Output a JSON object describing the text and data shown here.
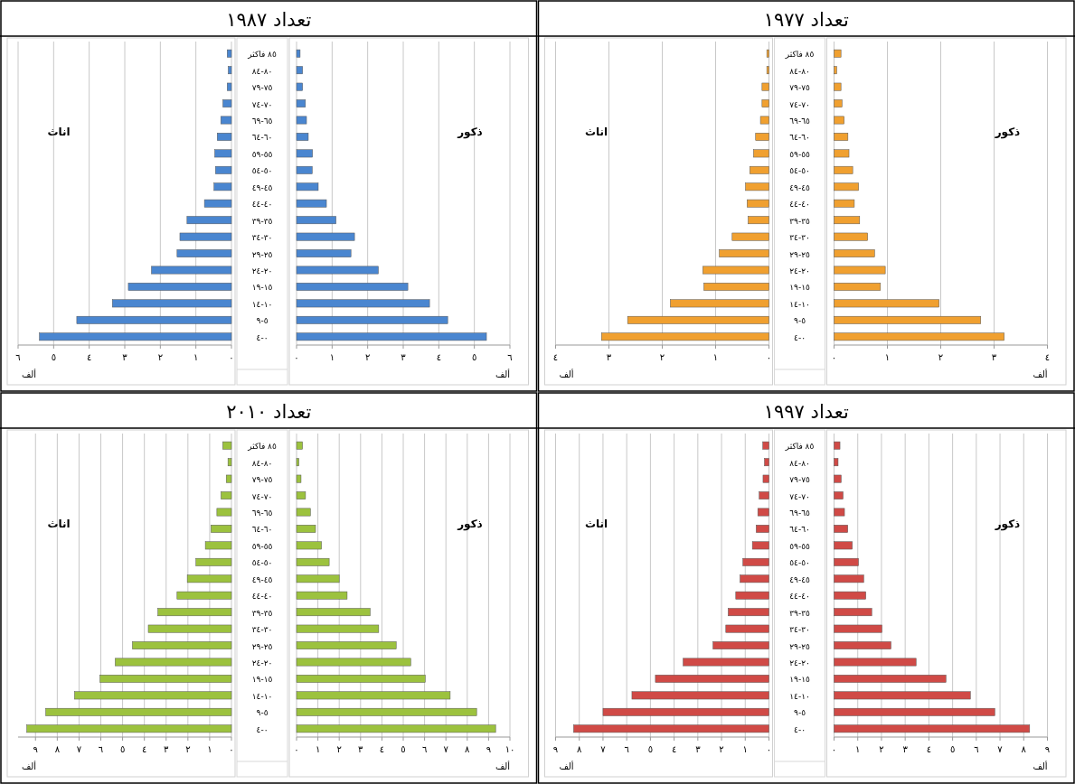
{
  "chart_data": [
    {
      "type": "bar",
      "orientation": "horizontal",
      "title": "تعداد ١٩٧٧",
      "xlabel": "ألف",
      "grid": "x",
      "categories": [
        "٨٥ فاكثر",
        "٨٠-٨٤",
        "٧٥-٧٩",
        "٧٠-٧٤",
        "٦٥-٦٩",
        "٦٠-٦٤",
        "٥٥-٥٩",
        "٥٠-٥٤",
        "٤٥-٤٩",
        "٤٠-٤٤",
        "٣٥-٣٩",
        "٣٠-٣٤",
        "٢٥-٢٩",
        "٢٠-٢٤",
        "١٥-١٩",
        "١٠-١٤",
        "٥-٩",
        "٠-٤"
      ],
      "xlim": [
        0,
        4
      ],
      "xticks": [
        {
          "value": 0,
          "label": "٠"
        },
        {
          "value": 1,
          "label": "١"
        },
        {
          "value": 2,
          "label": "٢"
        },
        {
          "value": 3,
          "label": "٣"
        },
        {
          "value": 4,
          "label": "٤"
        }
      ],
      "series": [
        {
          "name": "ذكور",
          "color": "#f0a030",
          "values": [
            0.13,
            0.05,
            0.13,
            0.15,
            0.19,
            0.26,
            0.28,
            0.35,
            0.46,
            0.38,
            0.48,
            0.63,
            0.76,
            0.96,
            0.87,
            1.97,
            2.75,
            3.19
          ]
        }
      ]
    },
    {
      "type": "bar",
      "orientation": "horizontal",
      "xlabel": "ألف",
      "grid": "x",
      "categories": [
        null,
        null,
        null,
        null,
        null,
        null,
        null,
        null,
        null,
        null,
        null,
        null,
        null,
        null,
        null,
        null,
        null,
        null
      ],
      "xlim": [
        4,
        0
      ],
      "xticks": [
        {
          "value": 4,
          "label": "٤"
        },
        {
          "value": 3,
          "label": "٣"
        },
        {
          "value": 2,
          "label": "٢"
        },
        {
          "value": 1,
          "label": "١"
        },
        {
          "value": 0,
          "label": "٠"
        }
      ],
      "series": [
        {
          "name": "اناث",
          "color": "#f0a030",
          "values": [
            0.04,
            0.04,
            0.13,
            0.13,
            0.16,
            0.25,
            0.29,
            0.36,
            0.44,
            0.41,
            0.39,
            0.69,
            0.93,
            1.24,
            1.22,
            1.85,
            2.65,
            3.14
          ]
        }
      ]
    },
    {
      "type": "bar",
      "orientation": "horizontal",
      "title": "تعداد ١٩٨٧",
      "xlabel": "ألف",
      "grid": "x",
      "categories": [
        "٨٥ فاكثر",
        "٨٠-٨٤",
        "٧٥-٧٩",
        "٧٠-٧٤",
        "٦٥-٦٩",
        "٦٠-٦٤",
        "٥٥-٥٩",
        "٥٠-٥٤",
        "٤٥-٤٩",
        "٤٠-٤٤",
        "٣٥-٣٩",
        "٣٠-٣٤",
        "٢٥-٢٩",
        "٢٠-٢٤",
        "١٥-١٩",
        "١٠-١٤",
        "٥-٩",
        "٠-٤"
      ],
      "xlim": [
        0,
        6
      ],
      "xticks": [
        {
          "value": 0,
          "label": "٠"
        },
        {
          "value": 1,
          "label": "١"
        },
        {
          "value": 2,
          "label": "٢"
        },
        {
          "value": 3,
          "label": "٣"
        },
        {
          "value": 4,
          "label": "٤"
        },
        {
          "value": 5,
          "label": "٥"
        },
        {
          "value": 6,
          "label": "٦"
        }
      ],
      "series": [
        {
          "name": "ذكور",
          "color": "#4a86d0",
          "values": [
            0.1,
            0.17,
            0.17,
            0.25,
            0.28,
            0.33,
            0.45,
            0.44,
            0.61,
            0.84,
            1.11,
            1.63,
            1.53,
            2.3,
            3.13,
            3.74,
            4.25,
            5.34
          ]
        }
      ]
    },
    {
      "type": "bar",
      "orientation": "horizontal",
      "xlabel": "ألف",
      "grid": "x",
      "categories": [
        null,
        null,
        null,
        null,
        null,
        null,
        null,
        null,
        null,
        null,
        null,
        null,
        null,
        null,
        null,
        null,
        null,
        null
      ],
      "xlim": [
        6,
        0
      ],
      "xticks": [
        {
          "value": 6,
          "label": "٦"
        },
        {
          "value": 5,
          "label": "٥"
        },
        {
          "value": 4,
          "label": "٤"
        },
        {
          "value": 3,
          "label": "٣"
        },
        {
          "value": 2,
          "label": "٢"
        },
        {
          "value": 1,
          "label": "١"
        },
        {
          "value": 0,
          "label": "٠"
        }
      ],
      "series": [
        {
          "name": "اناث",
          "color": "#4a86d0",
          "values": [
            0.12,
            0.09,
            0.12,
            0.24,
            0.3,
            0.4,
            0.47,
            0.45,
            0.49,
            0.76,
            1.25,
            1.45,
            1.53,
            2.25,
            2.9,
            3.35,
            4.35,
            5.4
          ]
        }
      ]
    },
    {
      "type": "bar",
      "orientation": "horizontal",
      "title": "تعداد ١٩٩٧",
      "xlabel": "ألف",
      "grid": "x",
      "categories": [
        "٨٥ فاكثر",
        "٨٠-٨٤",
        "٧٥-٧٩",
        "٧٠-٧٤",
        "٦٥-٦٩",
        "٦٠-٦٤",
        "٥٥-٥٩",
        "٥٠-٥٤",
        "٤٥-٤٩",
        "٤٠-٤٤",
        "٣٥-٣٩",
        "٣٠-٣٤",
        "٢٥-٢٩",
        "٢٠-٢٤",
        "١٥-١٩",
        "١٠-١٤",
        "٥-٩",
        "٠-٤"
      ],
      "xlim": [
        0,
        9
      ],
      "xticks": [
        {
          "value": 0,
          "label": "٠"
        },
        {
          "value": 1,
          "label": "١"
        },
        {
          "value": 2,
          "label": "٢"
        },
        {
          "value": 3,
          "label": "٣"
        },
        {
          "value": 4,
          "label": "٤"
        },
        {
          "value": 5,
          "label": "٥"
        },
        {
          "value": 6,
          "label": "٦"
        },
        {
          "value": 7,
          "label": "٧"
        },
        {
          "value": 8,
          "label": "٨"
        },
        {
          "value": 9,
          "label": "٩"
        }
      ],
      "series": [
        {
          "name": "ذكور",
          "color": "#d04a46",
          "values": [
            0.25,
            0.17,
            0.3,
            0.38,
            0.44,
            0.58,
            0.77,
            1.03,
            1.25,
            1.34,
            1.59,
            2.02,
            2.4,
            3.46,
            4.72,
            5.75,
            6.78,
            8.25
          ]
        }
      ]
    },
    {
      "type": "bar",
      "orientation": "horizontal",
      "xlabel": "ألف",
      "grid": "x",
      "categories": [
        null,
        null,
        null,
        null,
        null,
        null,
        null,
        null,
        null,
        null,
        null,
        null,
        null,
        null,
        null,
        null,
        null,
        null
      ],
      "xlim": [
        9,
        0
      ],
      "xticks": [
        {
          "value": 9,
          "label": "٩"
        },
        {
          "value": 8,
          "label": "٨"
        },
        {
          "value": 7,
          "label": "٧"
        },
        {
          "value": 6,
          "label": "٦"
        },
        {
          "value": 5,
          "label": "٥"
        },
        {
          "value": 4,
          "label": "٤"
        },
        {
          "value": 3,
          "label": "٣"
        },
        {
          "value": 2,
          "label": "٢"
        },
        {
          "value": 1,
          "label": "١"
        },
        {
          "value": 0,
          "label": "٠"
        }
      ],
      "series": [
        {
          "name": "اناث",
          "color": "#d04a46",
          "values": [
            0.26,
            0.19,
            0.25,
            0.41,
            0.47,
            0.54,
            0.7,
            1.1,
            1.22,
            1.4,
            1.72,
            1.82,
            2.36,
            3.62,
            4.79,
            5.78,
            7.0,
            8.24
          ]
        }
      ]
    },
    {
      "type": "bar",
      "orientation": "horizontal",
      "title": "تعداد ٢٠١٠",
      "xlabel": "ألف",
      "grid": "x",
      "categories": [
        "٨٥ فاكثر",
        "٨٠-٨٤",
        "٧٥-٧٩",
        "٧٠-٧٤",
        "٦٥-٦٩",
        "٦٠-٦٤",
        "٥٥-٥٩",
        "٥٠-٥٤",
        "٤٥-٤٩",
        "٤٠-٤٤",
        "٣٥-٣٩",
        "٣٠-٣٤",
        "٢٥-٢٩",
        "٢٠-٢٤",
        "١٥-١٩",
        "١٠-١٤",
        "٥-٩",
        "٠-٤"
      ],
      "xlim": [
        0,
        10
      ],
      "xticks": [
        {
          "value": 0,
          "label": "٠"
        },
        {
          "value": 1,
          "label": "١"
        },
        {
          "value": 2,
          "label": "٢"
        },
        {
          "value": 3,
          "label": "٣"
        },
        {
          "value": 4,
          "label": "٤"
        },
        {
          "value": 5,
          "label": "٥"
        },
        {
          "value": 6,
          "label": "٦"
        },
        {
          "value": 7,
          "label": "٧"
        },
        {
          "value": 8,
          "label": "٨"
        },
        {
          "value": 9,
          "label": "٩"
        },
        {
          "value": 10,
          "label": "١٠"
        }
      ],
      "series": [
        {
          "name": "ذكور",
          "color": "#9cc23e",
          "values": [
            0.28,
            0.11,
            0.21,
            0.42,
            0.65,
            0.89,
            1.17,
            1.53,
            2.0,
            2.37,
            3.45,
            3.85,
            4.67,
            5.35,
            6.03,
            7.2,
            8.44,
            9.33
          ]
        }
      ]
    },
    {
      "type": "bar",
      "orientation": "horizontal",
      "xlabel": "ألف",
      "grid": "x",
      "categories": [
        null,
        null,
        null,
        null,
        null,
        null,
        null,
        null,
        null,
        null,
        null,
        null,
        null,
        null,
        null,
        null,
        null,
        null
      ],
      "xlim": [
        9.8,
        0
      ],
      "xticks": [
        {
          "value": 9,
          "label": "٩"
        },
        {
          "value": 8,
          "label": "٨"
        },
        {
          "value": 7,
          "label": "٧"
        },
        {
          "value": 6,
          "label": "٦"
        },
        {
          "value": 5,
          "label": "٥"
        },
        {
          "value": 4,
          "label": "٤"
        },
        {
          "value": 3,
          "label": "٣"
        },
        {
          "value": 2,
          "label": "٢"
        },
        {
          "value": 1,
          "label": "١"
        },
        {
          "value": 0,
          "label": "٠"
        }
      ],
      "series": [
        {
          "name": "اناث",
          "color": "#9cc23e",
          "values": [
            0.4,
            0.16,
            0.24,
            0.48,
            0.67,
            0.94,
            1.2,
            1.63,
            2.03,
            2.5,
            3.38,
            3.82,
            4.55,
            5.34,
            6.04,
            7.21,
            8.53,
            9.4
          ]
        }
      ]
    }
  ]
}
